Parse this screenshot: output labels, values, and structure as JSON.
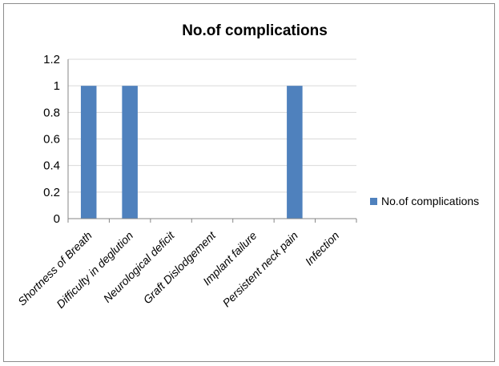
{
  "chart_data": {
    "type": "bar",
    "title": "No.of complications",
    "categories": [
      "Shortness of Breath",
      "Difficulty in deglution",
      "Neurological deficit",
      "Graft Dislodgement",
      "Implant failure",
      "Persistent neck pain",
      "Infection"
    ],
    "series": [
      {
        "name": "No.of complications",
        "values": [
          1,
          1,
          0,
          0,
          0,
          1,
          0
        ]
      }
    ],
    "ylim": [
      0,
      1.2
    ],
    "yticks": [
      "0",
      "0.2",
      "0.4",
      "0.6",
      "0.8",
      "1",
      "1.2"
    ],
    "grid": true,
    "legend": "right",
    "colors": {
      "bar": "#4f81bd",
      "grid": "#d9d9d9",
      "axis": "#868686"
    }
  }
}
